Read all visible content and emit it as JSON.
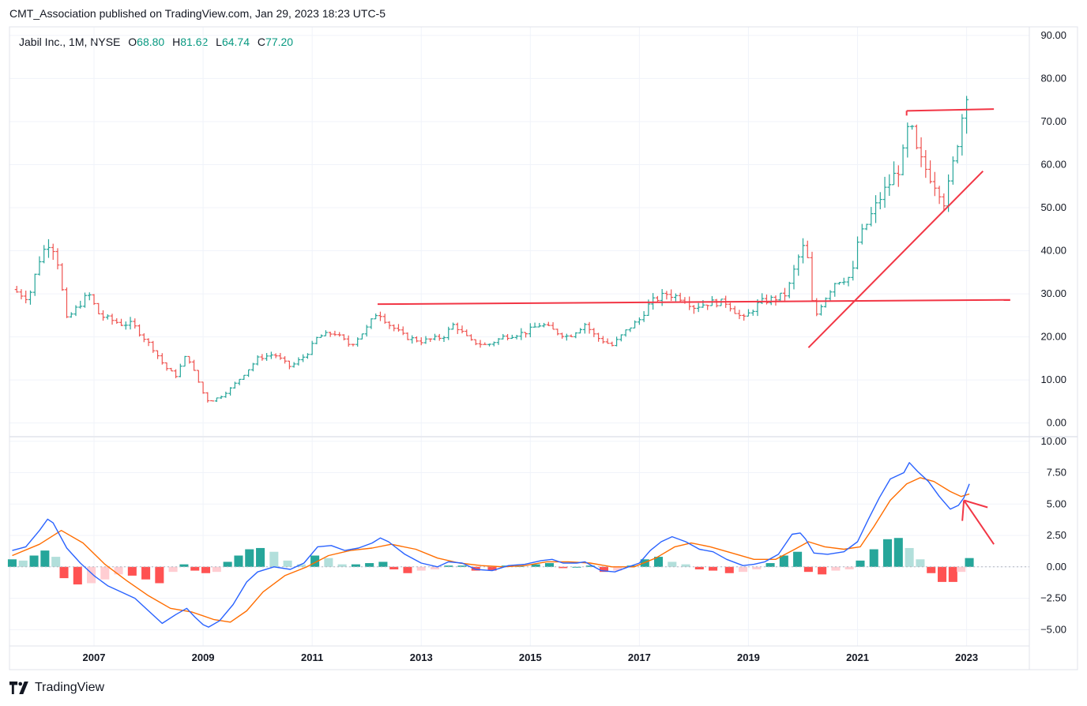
{
  "header": {
    "published_line": "CMT_Association published on TradingView.com, Jan 29, 2023 18:23 UTC-5"
  },
  "legend": {
    "symbol": "Jabil Inc., 1M, NYSE",
    "open_label": "O",
    "open_value": "68.80",
    "high_label": "H",
    "high_value": "81.62",
    "low_label": "L",
    "low_value": "64.74",
    "close_label": "C",
    "close_value": "77.20"
  },
  "footer": {
    "brand": "TradingView"
  },
  "colors": {
    "up": "#26a69a",
    "down": "#ef5350",
    "macd": "#2962ff",
    "signal": "#ff6d00",
    "hist_up_strong": "#26a69a",
    "hist_up_weak": "#b2dfdb",
    "hist_down_strong": "#ff5252",
    "hist_down_weak": "#ffcdd2",
    "trendline": "#f23645",
    "grid": "#f0f3fa",
    "border": "#e0e3eb"
  },
  "chart_data": [
    {
      "type": "ohlc",
      "name": "price",
      "ylim": [
        -3,
        92
      ],
      "yticks": [
        "0.00",
        "10.00",
        "20.00",
        "30.00",
        "40.00",
        "50.00",
        "60.00",
        "70.00",
        "80.00",
        "90.00"
      ],
      "ytick_values": [
        0,
        10,
        20,
        30,
        40,
        50,
        60,
        70,
        80,
        90
      ],
      "xlim": [
        2005.45,
        2024.15
      ],
      "xticks": [
        "2007",
        "2009",
        "2011",
        "2013",
        "2015",
        "2017",
        "2019",
        "2021",
        "2023"
      ],
      "xtick_values": [
        2007,
        2009,
        2011,
        2013,
        2015,
        2017,
        2019,
        2021,
        2023
      ],
      "close_by_time": [
        [
          2005.5,
          31
        ],
        [
          2005.8,
          29
        ],
        [
          2006.0,
          38
        ],
        [
          2006.15,
          42
        ],
        [
          2006.3,
          40
        ],
        [
          2006.5,
          24
        ],
        [
          2006.7,
          27
        ],
        [
          2006.9,
          30
        ],
        [
          2007.1,
          25
        ],
        [
          2007.3,
          24
        ],
        [
          2007.5,
          23
        ],
        [
          2007.7,
          23
        ],
        [
          2007.9,
          20
        ],
        [
          2008.1,
          17
        ],
        [
          2008.3,
          13
        ],
        [
          2008.5,
          11
        ],
        [
          2008.7,
          16
        ],
        [
          2008.9,
          10
        ],
        [
          2009.0,
          7
        ],
        [
          2009.1,
          5
        ],
        [
          2009.3,
          6
        ],
        [
          2009.5,
          8
        ],
        [
          2009.8,
          12
        ],
        [
          2010.0,
          15
        ],
        [
          2010.3,
          16
        ],
        [
          2010.6,
          13
        ],
        [
          2010.9,
          16
        ],
        [
          2011.1,
          20
        ],
        [
          2011.4,
          21
        ],
        [
          2011.7,
          18
        ],
        [
          2012.0,
          22
        ],
        [
          2012.2,
          26
        ],
        [
          2012.4,
          23
        ],
        [
          2012.7,
          20
        ],
        [
          2013.0,
          19
        ],
        [
          2013.4,
          20
        ],
        [
          2013.6,
          23
        ],
        [
          2013.9,
          19
        ],
        [
          2014.2,
          18
        ],
        [
          2014.5,
          20
        ],
        [
          2014.9,
          21
        ],
        [
          2015.2,
          23
        ],
        [
          2015.5,
          21
        ],
        [
          2015.7,
          20
        ],
        [
          2016.0,
          23
        ],
        [
          2016.2,
          20
        ],
        [
          2016.5,
          18
        ],
        [
          2016.8,
          22
        ],
        [
          2017.0,
          24
        ],
        [
          2017.2,
          28
        ],
        [
          2017.5,
          30
        ],
        [
          2017.8,
          29
        ],
        [
          2018.0,
          27
        ],
        [
          2018.3,
          28
        ],
        [
          2018.6,
          28
        ],
        [
          2018.9,
          24
        ],
        [
          2019.2,
          28
        ],
        [
          2019.5,
          29
        ],
        [
          2019.7,
          30
        ],
        [
          2019.9,
          38
        ],
        [
          2020.05,
          42
        ],
        [
          2020.2,
          24
        ],
        [
          2020.35,
          28
        ],
        [
          2020.6,
          33
        ],
        [
          2020.9,
          34
        ],
        [
          2021.0,
          42
        ],
        [
          2021.2,
          47
        ],
        [
          2021.4,
          52
        ],
        [
          2021.6,
          56
        ],
        [
          2021.8,
          60
        ],
        [
          2021.95,
          70
        ],
        [
          2022.1,
          62
        ],
        [
          2022.3,
          58
        ],
        [
          2022.5,
          54
        ],
        [
          2022.6,
          51
        ],
        [
          2022.75,
          60
        ],
        [
          2022.9,
          70
        ],
        [
          2023.0,
          77.2
        ]
      ]
    },
    {
      "type": "macd",
      "name": "MACD",
      "ylim": [
        -6.3,
        10.3
      ],
      "yticks": [
        "−5.00",
        "−2.50",
        "0.00",
        "2.50",
        "5.00",
        "7.50",
        "10.00"
      ],
      "ytick_values": [
        -5,
        -2.5,
        0,
        2.5,
        5,
        7.5,
        10
      ],
      "macd_line": [
        [
          2005.5,
          1.3
        ],
        [
          2005.75,
          1.6
        ],
        [
          2006.0,
          2.9
        ],
        [
          2006.15,
          3.8
        ],
        [
          2006.25,
          3.5
        ],
        [
          2006.5,
          1.5
        ],
        [
          2006.75,
          0.3
        ],
        [
          2007.0,
          -0.7
        ],
        [
          2007.25,
          -1.5
        ],
        [
          2007.5,
          -2.0
        ],
        [
          2007.75,
          -2.5
        ],
        [
          2008.0,
          -3.5
        ],
        [
          2008.25,
          -4.5
        ],
        [
          2008.5,
          -3.8
        ],
        [
          2008.7,
          -3.3
        ],
        [
          2008.85,
          -4.0
        ],
        [
          2009.0,
          -4.6
        ],
        [
          2009.1,
          -4.8
        ],
        [
          2009.3,
          -4.3
        ],
        [
          2009.55,
          -3.0
        ],
        [
          2009.8,
          -1.2
        ],
        [
          2010.0,
          -0.4
        ],
        [
          2010.3,
          0.0
        ],
        [
          2010.6,
          -0.2
        ],
        [
          2010.85,
          0.3
        ],
        [
          2011.1,
          1.6
        ],
        [
          2011.35,
          1.7
        ],
        [
          2011.6,
          1.3
        ],
        [
          2011.85,
          1.5
        ],
        [
          2012.1,
          1.9
        ],
        [
          2012.25,
          2.3
        ],
        [
          2012.4,
          2.0
        ],
        [
          2012.7,
          1.0
        ],
        [
          2013.0,
          0.3
        ],
        [
          2013.3,
          0.0
        ],
        [
          2013.5,
          0.4
        ],
        [
          2013.75,
          0.3
        ],
        [
          2014.0,
          -0.2
        ],
        [
          2014.3,
          -0.3
        ],
        [
          2014.6,
          0.1
        ],
        [
          2014.9,
          0.2
        ],
        [
          2015.2,
          0.5
        ],
        [
          2015.4,
          0.6
        ],
        [
          2015.6,
          0.3
        ],
        [
          2015.85,
          0.3
        ],
        [
          2016.0,
          0.4
        ],
        [
          2016.3,
          -0.3
        ],
        [
          2016.55,
          -0.4
        ],
        [
          2016.8,
          0.0
        ],
        [
          2017.0,
          0.3
        ],
        [
          2017.2,
          1.3
        ],
        [
          2017.4,
          2.0
        ],
        [
          2017.6,
          2.4
        ],
        [
          2017.85,
          2.0
        ],
        [
          2018.1,
          1.4
        ],
        [
          2018.35,
          1.2
        ],
        [
          2018.6,
          0.6
        ],
        [
          2018.9,
          0.1
        ],
        [
          2019.1,
          0.2
        ],
        [
          2019.3,
          0.4
        ],
        [
          2019.55,
          1.0
        ],
        [
          2019.8,
          2.6
        ],
        [
          2019.95,
          2.7
        ],
        [
          2020.05,
          2.2
        ],
        [
          2020.2,
          1.1
        ],
        [
          2020.45,
          1.0
        ],
        [
          2020.75,
          1.2
        ],
        [
          2021.0,
          2.0
        ],
        [
          2021.2,
          3.8
        ],
        [
          2021.4,
          5.5
        ],
        [
          2021.6,
          7.0
        ],
        [
          2021.85,
          7.5
        ],
        [
          2021.95,
          8.3
        ],
        [
          2022.1,
          7.6
        ],
        [
          2022.3,
          6.8
        ],
        [
          2022.5,
          5.6
        ],
        [
          2022.7,
          4.6
        ],
        [
          2022.85,
          4.9
        ],
        [
          2022.95,
          5.5
        ],
        [
          2023.05,
          6.6
        ]
      ],
      "signal_line": [
        [
          2005.5,
          0.9
        ],
        [
          2006.0,
          1.8
        ],
        [
          2006.4,
          2.9
        ],
        [
          2006.8,
          1.9
        ],
        [
          2007.2,
          0.2
        ],
        [
          2007.6,
          -1.1
        ],
        [
          2008.0,
          -2.3
        ],
        [
          2008.4,
          -3.3
        ],
        [
          2008.8,
          -3.6
        ],
        [
          2009.2,
          -4.2
        ],
        [
          2009.5,
          -4.4
        ],
        [
          2009.8,
          -3.5
        ],
        [
          2010.1,
          -2.0
        ],
        [
          2010.5,
          -0.7
        ],
        [
          2010.9,
          0.0
        ],
        [
          2011.3,
          0.9
        ],
        [
          2011.7,
          1.3
        ],
        [
          2012.1,
          1.5
        ],
        [
          2012.45,
          1.8
        ],
        [
          2012.9,
          1.4
        ],
        [
          2013.3,
          0.7
        ],
        [
          2013.7,
          0.3
        ],
        [
          2014.1,
          0.1
        ],
        [
          2014.5,
          0.0
        ],
        [
          2014.9,
          0.1
        ],
        [
          2015.3,
          0.4
        ],
        [
          2015.7,
          0.4
        ],
        [
          2016.1,
          0.3
        ],
        [
          2016.5,
          0.0
        ],
        [
          2016.9,
          0.0
        ],
        [
          2017.3,
          0.7
        ],
        [
          2017.65,
          1.6
        ],
        [
          2017.95,
          1.9
        ],
        [
          2018.3,
          1.6
        ],
        [
          2018.7,
          1.1
        ],
        [
          2019.1,
          0.6
        ],
        [
          2019.5,
          0.6
        ],
        [
          2019.85,
          1.4
        ],
        [
          2020.1,
          2.0
        ],
        [
          2020.4,
          1.6
        ],
        [
          2020.75,
          1.4
        ],
        [
          2021.05,
          1.6
        ],
        [
          2021.3,
          3.2
        ],
        [
          2021.6,
          5.3
        ],
        [
          2021.9,
          6.6
        ],
        [
          2022.15,
          7.1
        ],
        [
          2022.4,
          6.8
        ],
        [
          2022.7,
          6.0
        ],
        [
          2022.9,
          5.6
        ],
        [
          2023.05,
          5.8
        ]
      ],
      "histogram": [
        [
          2005.5,
          0.6
        ],
        [
          2005.7,
          0.5
        ],
        [
          2005.9,
          0.9
        ],
        [
          2006.1,
          1.3
        ],
        [
          2006.3,
          0.8
        ],
        [
          2006.45,
          -0.9
        ],
        [
          2006.7,
          -1.4
        ],
        [
          2006.95,
          -1.3
        ],
        [
          2007.2,
          -1.0
        ],
        [
          2007.45,
          -0.6
        ],
        [
          2007.7,
          -0.7
        ],
        [
          2007.95,
          -1.0
        ],
        [
          2008.2,
          -1.3
        ],
        [
          2008.45,
          -0.4
        ],
        [
          2008.65,
          0.2
        ],
        [
          2008.85,
          -0.3
        ],
        [
          2009.05,
          -0.5
        ],
        [
          2009.25,
          -0.4
        ],
        [
          2009.45,
          0.4
        ],
        [
          2009.65,
          0.9
        ],
        [
          2009.85,
          1.4
        ],
        [
          2010.05,
          1.5
        ],
        [
          2010.3,
          1.2
        ],
        [
          2010.55,
          0.5
        ],
        [
          2010.8,
          0.2
        ],
        [
          2011.05,
          0.9
        ],
        [
          2011.3,
          0.7
        ],
        [
          2011.55,
          0.2
        ],
        [
          2011.8,
          0.2
        ],
        [
          2012.05,
          0.3
        ],
        [
          2012.3,
          0.4
        ],
        [
          2012.5,
          -0.2
        ],
        [
          2012.75,
          -0.5
        ],
        [
          2013.0,
          -0.3
        ],
        [
          2013.25,
          -0.2
        ],
        [
          2013.5,
          0.1
        ],
        [
          2013.75,
          0.1
        ],
        [
          2014.0,
          -0.3
        ],
        [
          2014.3,
          -0.3
        ],
        [
          2014.55,
          0.1
        ],
        [
          2014.8,
          0.1
        ],
        [
          2015.1,
          0.2
        ],
        [
          2015.35,
          0.3
        ],
        [
          2015.6,
          -0.1
        ],
        [
          2015.85,
          0.0
        ],
        [
          2016.1,
          0.1
        ],
        [
          2016.35,
          -0.4
        ],
        [
          2016.6,
          -0.3
        ],
        [
          2016.85,
          0.1
        ],
        [
          2017.1,
          0.6
        ],
        [
          2017.35,
          0.8
        ],
        [
          2017.6,
          0.4
        ],
        [
          2017.85,
          0.2
        ],
        [
          2018.1,
          -0.2
        ],
        [
          2018.35,
          -0.3
        ],
        [
          2018.65,
          -0.5
        ],
        [
          2018.9,
          -0.4
        ],
        [
          2019.15,
          -0.2
        ],
        [
          2019.4,
          0.3
        ],
        [
          2019.65,
          0.9
        ],
        [
          2019.9,
          1.2
        ],
        [
          2020.1,
          -0.4
        ],
        [
          2020.35,
          -0.6
        ],
        [
          2020.6,
          -0.3
        ],
        [
          2020.85,
          -0.2
        ],
        [
          2021.05,
          0.5
        ],
        [
          2021.3,
          1.4
        ],
        [
          2021.55,
          2.2
        ],
        [
          2021.75,
          2.3
        ],
        [
          2021.95,
          1.5
        ],
        [
          2022.15,
          0.6
        ],
        [
          2022.35,
          -0.5
        ],
        [
          2022.55,
          -1.2
        ],
        [
          2022.75,
          -1.2
        ],
        [
          2022.9,
          -0.4
        ],
        [
          2023.05,
          0.7
        ]
      ]
    }
  ],
  "annotations": {
    "horizontal_resistance_2012_2023": {
      "x1": 2012.2,
      "y1": 27.6,
      "x2": 2023.8,
      "y2": 28.6
    },
    "horizontal_resistance_2021_2023": {
      "x1": 2021.9,
      "y1": 72.5,
      "x2": 2023.5,
      "y2": 72.9
    },
    "rising_trendline": {
      "x1": 2020.1,
      "y1": 17.5,
      "x2": 2023.3,
      "y2": 58.5
    },
    "macd_arrow": {
      "from_x": 2023.5,
      "from_y": 1.8,
      "to_x": 2022.95,
      "to_y": 5.3
    }
  }
}
